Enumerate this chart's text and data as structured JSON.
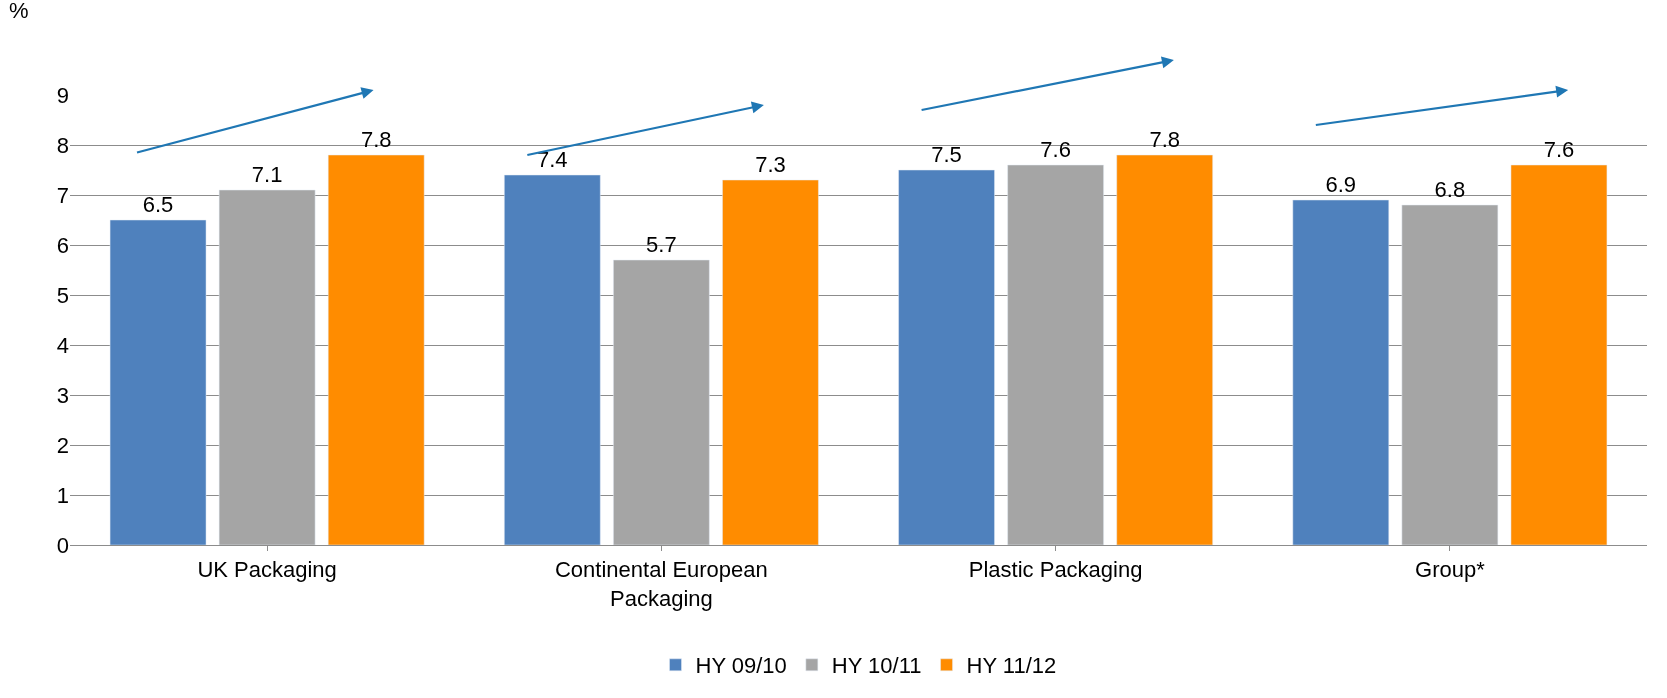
{
  "chart_data": {
    "type": "bar",
    "ylabel": "%",
    "categories": [
      "UK Packaging",
      "Continental European Packaging",
      "Plastic Packaging",
      "Group*"
    ],
    "series": [
      {
        "name": "HY 09/10",
        "color": "#4f81bd",
        "values": [
          6.5,
          7.4,
          7.5,
          6.9
        ]
      },
      {
        "name": "HY 10/11",
        "color": "#a5a5a5",
        "values": [
          7.1,
          5.7,
          7.6,
          6.8
        ]
      },
      {
        "name": "HY 11/12",
        "color": "#ff8c00",
        "values": [
          7.8,
          7.3,
          7.8,
          7.6
        ]
      }
    ],
    "ylim": [
      0,
      9
    ],
    "yticks": [
      0,
      1,
      2,
      3,
      4,
      5,
      6,
      7,
      8,
      9
    ],
    "grid": "y",
    "legend": "bottom",
    "data_labels": true
  }
}
